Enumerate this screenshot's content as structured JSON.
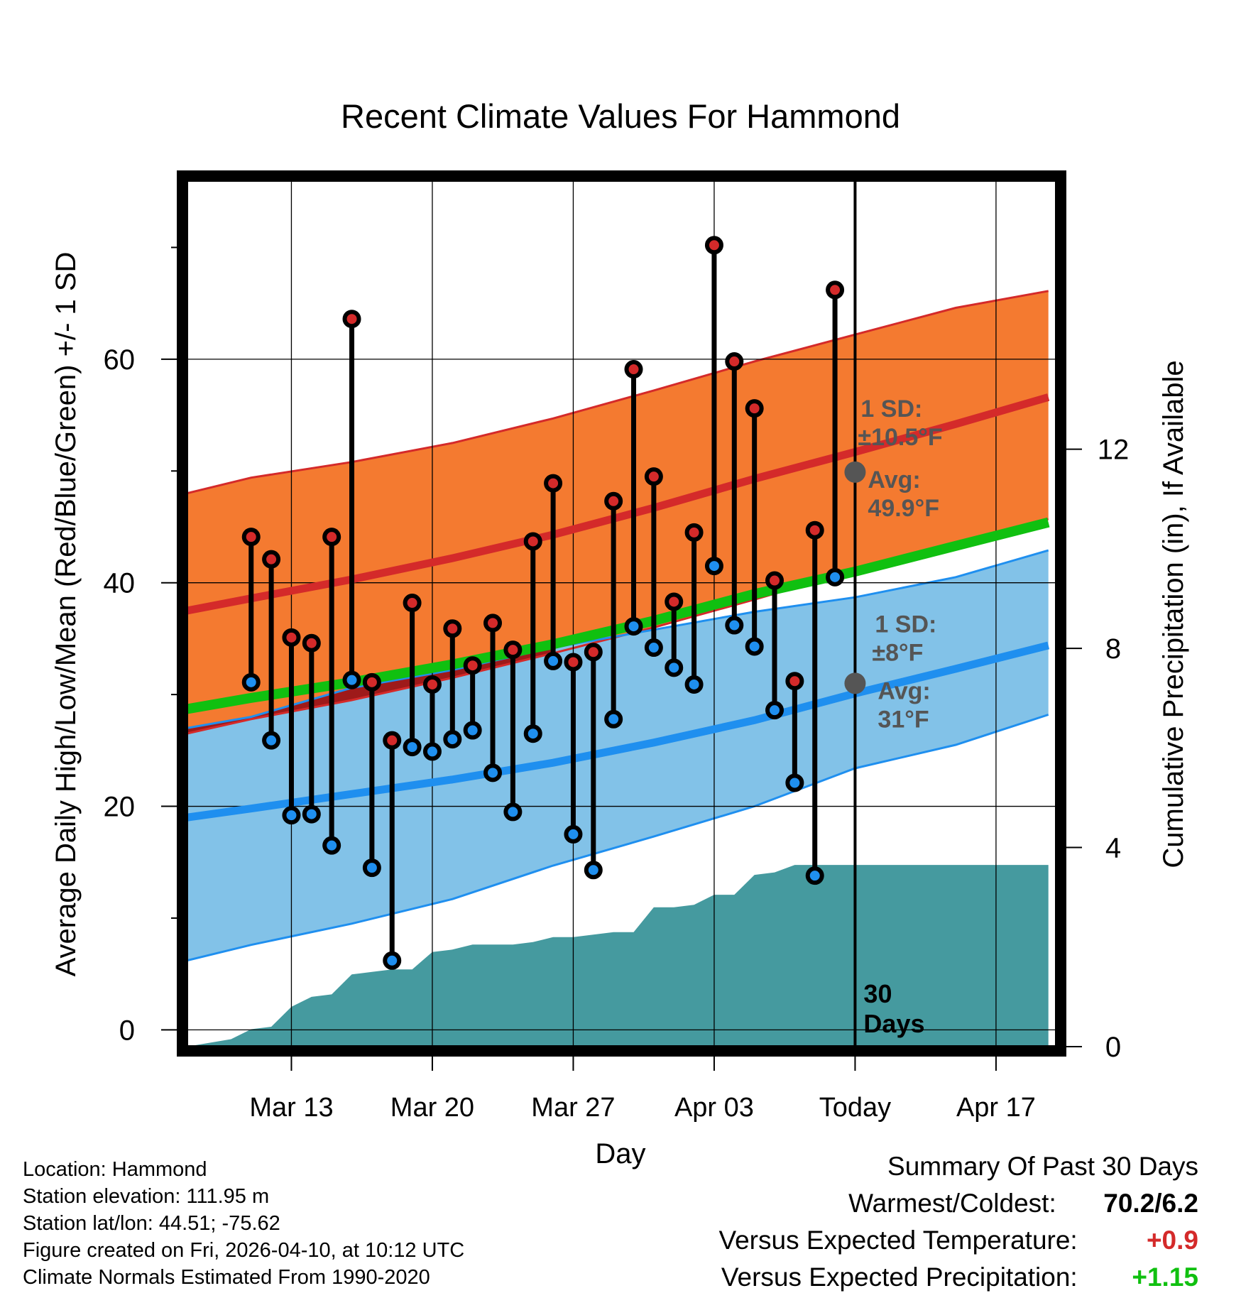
{
  "chart_data": {
    "type": "line",
    "title": "Recent Climate Values For Hammond",
    "xlabel": "Day",
    "ylabel": "Average Daily High/Low/Mean (Red/Blue/Green) +/- 1 SD",
    "y2label": "Cumulative Precipitation (in), If Available",
    "ylim": [
      -1.5,
      76
    ],
    "y2lim": [
      0,
      17.4
    ],
    "y_ticks": [
      "0",
      "20",
      "40",
      "60"
    ],
    "y_tick_values": [
      0,
      20,
      40,
      60
    ],
    "y2_ticks": [
      "0",
      "4",
      "8",
      "12"
    ],
    "y2_tick_values": [
      0,
      4,
      8,
      12
    ],
    "x_range_days": [
      -33.2,
      10
    ],
    "x_ticks": [
      {
        "label": "Mar 13",
        "day": -28
      },
      {
        "label": "Mar 20",
        "day": -21
      },
      {
        "label": "Mar 27",
        "day": -14
      },
      {
        "label": "Apr 03",
        "day": -7
      },
      {
        "label": "Today",
        "day": 0
      },
      {
        "label": "Apr 17",
        "day": 7
      }
    ],
    "today_label": "30\nDays",
    "days": [
      -30,
      -29,
      -28,
      -27,
      -26,
      -25,
      -24,
      -23,
      -22,
      -21,
      -20,
      -19,
      -18,
      -17,
      -16,
      -15,
      -14,
      -13,
      -12,
      -11,
      -10,
      -9,
      -8,
      -7,
      -6,
      -5,
      -4,
      -3,
      -2,
      -1
    ],
    "highs": [
      44.1,
      42.1,
      35.1,
      34.6,
      44.1,
      63.6,
      31.1,
      25.9,
      38.2,
      30.9,
      35.9,
      32.6,
      36.4,
      34.0,
      43.7,
      48.9,
      32.9,
      33.8,
      47.3,
      59.1,
      49.5,
      38.3,
      44.5,
      70.2,
      59.8,
      55.6,
      40.2,
      31.2,
      44.7,
      66.2
    ],
    "lows": [
      31.1,
      25.9,
      19.2,
      19.3,
      16.5,
      31.3,
      14.5,
      6.2,
      25.3,
      24.9,
      26.0,
      26.8,
      23.0,
      19.5,
      26.5,
      33.0,
      17.5,
      14.3,
      27.8,
      36.1,
      34.2,
      32.4,
      30.9,
      41.5,
      36.2,
      34.3,
      28.6,
      22.1,
      13.8,
      40.5
    ],
    "normal_high": [
      [
        -33.2,
        37.5
      ],
      [
        -30,
        38.6
      ],
      [
        -25,
        40.3
      ],
      [
        -20,
        42.2
      ],
      [
        -15,
        44.3
      ],
      [
        -10,
        46.7
      ],
      [
        -5,
        49.3
      ],
      [
        0,
        51.7
      ],
      [
        5,
        54.2
      ],
      [
        9.6,
        56.6
      ]
    ],
    "normal_low": [
      [
        -33.2,
        19.0
      ],
      [
        -30,
        19.8
      ],
      [
        -25,
        21.1
      ],
      [
        -20,
        22.4
      ],
      [
        -15,
        23.9
      ],
      [
        -10,
        25.7
      ],
      [
        -5,
        27.7
      ],
      [
        0,
        30.1
      ],
      [
        5,
        32.3
      ],
      [
        9.6,
        34.4
      ]
    ],
    "normal_mean": [
      [
        -33.2,
        28.7
      ],
      [
        -30,
        29.7
      ],
      [
        -25,
        31.1
      ],
      [
        -20,
        32.7
      ],
      [
        -15,
        34.5
      ],
      [
        -10,
        36.6
      ],
      [
        -5,
        39.0
      ],
      [
        0,
        41.0
      ],
      [
        5,
        43.3
      ],
      [
        9.6,
        45.4
      ]
    ],
    "high_sd_upper": [
      [
        -33.2,
        48.0
      ],
      [
        -30,
        49.4
      ],
      [
        -25,
        50.8
      ],
      [
        -20,
        52.5
      ],
      [
        -15,
        54.7
      ],
      [
        -10,
        57.2
      ],
      [
        -5,
        59.8
      ],
      [
        0,
        62.2
      ],
      [
        5,
        64.6
      ],
      [
        9.6,
        66.1
      ]
    ],
    "high_sd_lower": [
      [
        -33.2,
        26.5
      ],
      [
        -30,
        27.8
      ],
      [
        -25,
        29.5
      ],
      [
        -20,
        31.5
      ],
      [
        -15,
        33.7
      ],
      [
        -10,
        36.0
      ],
      [
        -5,
        38.5
      ],
      [
        0,
        41.1
      ],
      [
        5,
        43.6
      ],
      [
        9.6,
        45.7
      ]
    ],
    "low_sd_upper": [
      [
        -33.2,
        27.0
      ],
      [
        -30,
        28.0
      ],
      [
        -25,
        30.6
      ],
      [
        -20,
        32.2
      ],
      [
        -15,
        34.2
      ],
      [
        -10,
        35.8
      ],
      [
        -5,
        37.4
      ],
      [
        0,
        38.7
      ],
      [
        5,
        40.5
      ],
      [
        9.6,
        42.9
      ]
    ],
    "low_sd_lower": [
      [
        -33.2,
        6.2
      ],
      [
        -30,
        7.6
      ],
      [
        -25,
        9.5
      ],
      [
        -20,
        11.7
      ],
      [
        -15,
        14.7
      ],
      [
        -10,
        17.3
      ],
      [
        -5,
        20.0
      ],
      [
        0,
        23.4
      ],
      [
        5,
        25.5
      ],
      [
        9.6,
        28.2
      ]
    ],
    "precip_cumulative": [
      [
        -33.2,
        0
      ],
      [
        -31,
        0.15
      ],
      [
        -30,
        0.35
      ],
      [
        -29,
        0.4
      ],
      [
        -28,
        0.8
      ],
      [
        -27,
        1.0
      ],
      [
        -26,
        1.05
      ],
      [
        -25,
        1.45
      ],
      [
        -24,
        1.5
      ],
      [
        -23,
        1.55
      ],
      [
        -22,
        1.55
      ],
      [
        -21,
        1.9
      ],
      [
        -20,
        1.95
      ],
      [
        -19,
        2.05
      ],
      [
        -18,
        2.05
      ],
      [
        -17,
        2.05
      ],
      [
        -16,
        2.1
      ],
      [
        -15,
        2.2
      ],
      [
        -14,
        2.2
      ],
      [
        -13,
        2.25
      ],
      [
        -12,
        2.3
      ],
      [
        -11,
        2.3
      ],
      [
        -10,
        2.8
      ],
      [
        -9,
        2.8
      ],
      [
        -8,
        2.85
      ],
      [
        -7,
        3.05
      ],
      [
        -6,
        3.05
      ],
      [
        -5,
        3.45
      ],
      [
        -4,
        3.5
      ],
      [
        -3,
        3.65
      ],
      [
        -2,
        3.65
      ],
      [
        -1,
        3.65
      ],
      [
        0,
        3.65
      ],
      [
        5,
        3.65
      ],
      [
        9.6,
        3.65
      ]
    ],
    "annotations": {
      "high_sd_title": "1 SD:",
      "high_sd_value": "±10.5°F",
      "high_avg_title": "Avg:",
      "high_avg_value": "49.9°F",
      "high_avg_point": 49.9,
      "low_sd_title": "1 SD:",
      "low_sd_value": "±8°F",
      "low_avg_title": "Avg:",
      "low_avg_value": "31°F",
      "low_avg_point": 31
    },
    "colors": {
      "high": "#d42a2a",
      "high_band": "#f47a30",
      "low": "#1f8fef",
      "low_band": "#82c2e8",
      "mean": "#10c010",
      "overlap_band": "#9e1a1a",
      "precip": "#459a9f",
      "annotation": "#555555",
      "gridline": "#000000"
    }
  },
  "footer": {
    "location": "Location: Hammond",
    "elevation": "Station elevation: 111.95 m",
    "latlon": "Station lat/lon: 44.51; -75.62",
    "created": "Figure created on Fri, 2026-04-10, at 10:12 UTC",
    "normals": "Climate Normals Estimated From 1990-2020"
  },
  "summary": {
    "title": "Summary Of Past 30 Days",
    "warmest_coldest_label": "Warmest/Coldest:",
    "warmest_coldest_value": "70.2/6.2",
    "temp_label": "Versus Expected Temperature:",
    "temp_value": "+0.9",
    "temp_color": "#d42a2a",
    "precip_label": "Versus Expected Precipitation:",
    "precip_value": "+1.15",
    "precip_color": "#10c010"
  }
}
